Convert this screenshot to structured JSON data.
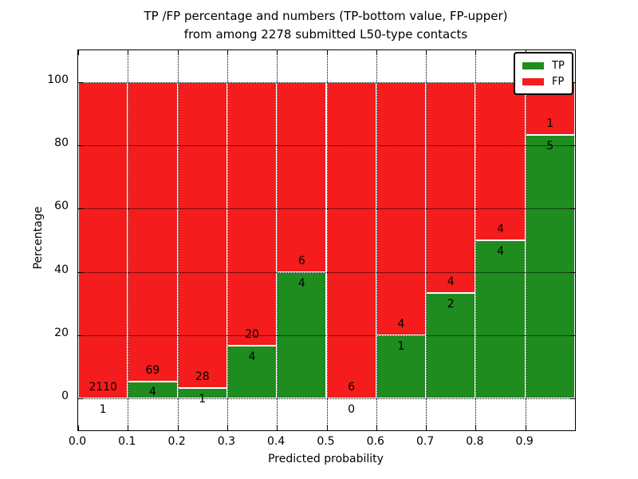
{
  "title": {
    "line1": "TP /FP percentage and numbers (TP-bottom value, FP-upper)",
    "line2": "from among 2278 submitted L50-type contacts"
  },
  "colors": {
    "tp_green": "#1E8C1E",
    "fp_red": "#F41C1C",
    "text": "#000000",
    "background": "#FFFFFF"
  },
  "legend": {
    "position": "upper right",
    "items": [
      {
        "label": "TP",
        "color": "#1E8C1E"
      },
      {
        "label": "FP",
        "color": "#F41C1C"
      }
    ]
  },
  "chart_data": {
    "type": "bar",
    "stacked": true,
    "title": "TP /FP percentage and numbers (TP-bottom value, FP-upper) from among 2278 submitted L50-type contacts",
    "xlabel": "Predicted probability",
    "ylabel": "Percentage",
    "xlim": [
      0.0,
      1.0
    ],
    "ylim": [
      -10,
      110
    ],
    "grid": true,
    "total_contacts": 2278,
    "bin_edges": [
      0.0,
      0.1,
      0.2,
      0.3,
      0.4,
      0.5,
      0.6,
      0.7,
      0.8,
      0.9,
      1.0
    ],
    "xtick_labels": [
      "0.0",
      "0.1",
      "0.2",
      "0.3",
      "0.4",
      "0.5",
      "0.6",
      "0.7",
      "0.8",
      "0.9"
    ],
    "xtick_values": [
      0.0,
      0.1,
      0.2,
      0.3,
      0.4,
      0.5,
      0.6,
      0.7,
      0.8,
      0.9
    ],
    "ytick_labels": [
      "0",
      "20",
      "40",
      "60",
      "80",
      "100"
    ],
    "ytick_values": [
      0,
      20,
      40,
      60,
      80,
      100
    ],
    "series": [
      {
        "name": "TP",
        "color": "#1E8C1E",
        "counts": [
          1,
          4,
          1,
          4,
          4,
          0,
          1,
          2,
          4,
          5
        ],
        "percent_of_bin": [
          0.05,
          5.48,
          3.45,
          16.67,
          40.0,
          0.0,
          20.0,
          33.33,
          50.0,
          83.33
        ]
      },
      {
        "name": "FP",
        "color": "#F41C1C",
        "counts": [
          2110,
          69,
          28,
          20,
          6,
          6,
          4,
          4,
          4,
          1
        ],
        "percent_of_bin": [
          99.95,
          94.52,
          96.55,
          83.33,
          60.0,
          100.0,
          80.0,
          66.67,
          50.0,
          16.67
        ]
      }
    ]
  }
}
